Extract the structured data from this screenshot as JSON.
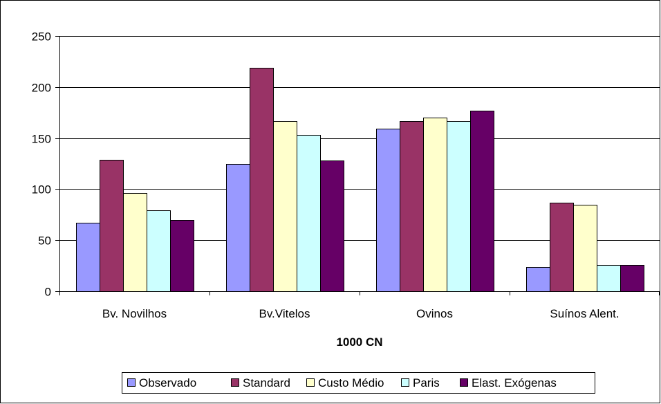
{
  "chart_data": {
    "type": "bar",
    "title": "",
    "xlabel": "1000 CN",
    "ylabel": "",
    "ylim": [
      0,
      250
    ],
    "yticks": [
      0,
      50,
      100,
      150,
      200,
      250
    ],
    "categories": [
      "Bv. Novilhos",
      "Bv.Vitelos",
      "Ovinos",
      "Suínos Alent."
    ],
    "grid": true,
    "legend_position": "bottom",
    "series": [
      {
        "name": "Observado",
        "color": "#9999FF",
        "values": [
          67,
          125,
          159,
          24
        ]
      },
      {
        "name": "Standard",
        "color": "#993366",
        "values": [
          129,
          219,
          167,
          87
        ]
      },
      {
        "name": "Custo Médio",
        "color": "#FFFFCC",
        "values": [
          96,
          167,
          170,
          85
        ]
      },
      {
        "name": "Paris",
        "color": "#CCFFFF",
        "values": [
          79,
          153,
          167,
          26
        ]
      },
      {
        "name": "Elast. Exógenas",
        "color": "#660066",
        "values": [
          70,
          128,
          177,
          26
        ]
      }
    ]
  }
}
